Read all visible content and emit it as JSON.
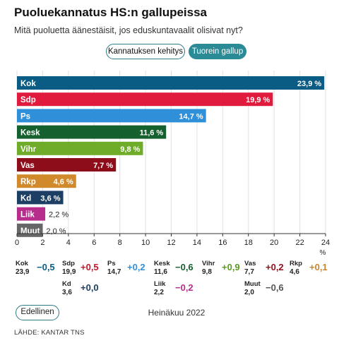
{
  "header": {
    "title": "Puoluekannatus HS:n gallupeissa",
    "subtitle": "Mitä puoluetta äänestäisit, jos eduskuntavaalit olisivat nyt?",
    "toggle_trend": "Kannatuksen kehitys",
    "toggle_latest": "Tuorein gallup"
  },
  "chart_data": {
    "type": "bar",
    "orientation": "horizontal",
    "categories": [
      "Kok",
      "Sdp",
      "Ps",
      "Kesk",
      "Vihr",
      "Vas",
      "Rkp",
      "Kd",
      "Liik",
      "Muut"
    ],
    "values": [
      23.9,
      19.9,
      14.7,
      11.6,
      9.8,
      7.7,
      4.6,
      3.6,
      2.2,
      2.0
    ],
    "value_labels": [
      "23,9 %",
      "19,9 %",
      "14,7 %",
      "11,6 %",
      "9,8 %",
      "7,7 %",
      "4,6 %",
      "3,6 %",
      "2,2 %",
      "2,0 %"
    ],
    "colors": [
      "#0a5c84",
      "#e11b3d",
      "#2f8fd8",
      "#14602e",
      "#6fac2a",
      "#8e0d1b",
      "#d08a2b",
      "#1d3f64",
      "#b62d8b",
      "#666666"
    ],
    "xlim": [
      0,
      24
    ],
    "xticks": [
      "0",
      "2",
      "4",
      "6",
      "8",
      "10",
      "12",
      "14",
      "16",
      "18",
      "20",
      "22",
      "24"
    ],
    "xunit": "%",
    "grid": true
  },
  "changes": [
    {
      "party": "Kok",
      "value": "23,9",
      "change": "−0,5",
      "color": "#0a5c84"
    },
    {
      "party": "Sdp",
      "value": "19,9",
      "change": "+0,5",
      "color": "#c4162a"
    },
    {
      "party": "Ps",
      "value": "14,7",
      "change": "+0,2",
      "color": "#2f8fd8"
    },
    {
      "party": "Kesk",
      "value": "11,6",
      "change": "−0,6",
      "color": "#14602e"
    },
    {
      "party": "Vihr",
      "value": "9,8",
      "change": "+0,9",
      "color": "#5a9a22"
    },
    {
      "party": "Vas",
      "value": "7,7",
      "change": "+0,2",
      "color": "#8e0d1b"
    },
    {
      "party": "Rkp",
      "value": "4,6",
      "change": "+0,1",
      "color": "#c9842a"
    },
    {
      "party": "Kd",
      "value": "3,6",
      "change": "+0,0",
      "color": "#1d3f64"
    },
    {
      "party": "Liik",
      "value": "2,2",
      "change": "−0,2",
      "color": "#b62d8b"
    },
    {
      "party": "Muut",
      "value": "2,0",
      "change": "−0,6",
      "color": "#555555"
    }
  ],
  "footer": {
    "previous": "Edellinen",
    "date": "Heinäkuu 2022",
    "source": "LÄHDE: KANTAR TNS"
  }
}
